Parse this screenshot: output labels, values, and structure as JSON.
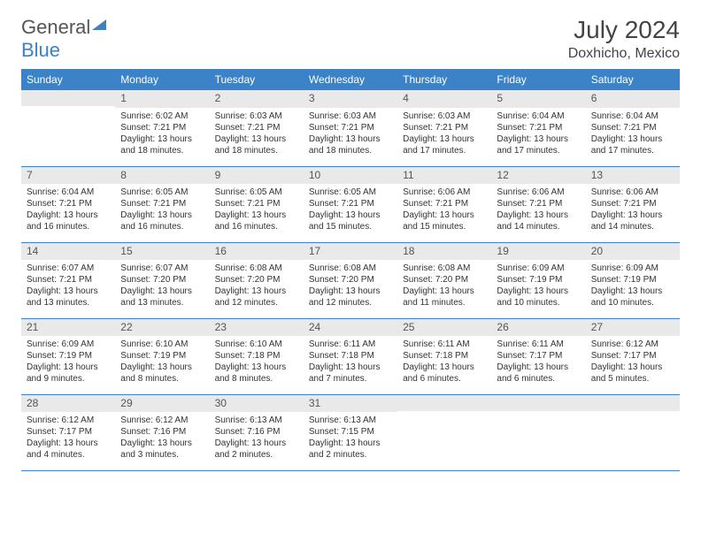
{
  "logo": {
    "general": "General",
    "blue": "Blue"
  },
  "title": "July 2024",
  "location": "Doxhicho, Mexico",
  "colors": {
    "header_bg": "#3b82c7",
    "header_text": "#ffffff",
    "daynum_bg": "#e9e9e9",
    "daynum_text": "#555555",
    "border": "#3b82c7",
    "body_text": "#333333",
    "page_bg": "#ffffff"
  },
  "weekdays": [
    "Sunday",
    "Monday",
    "Tuesday",
    "Wednesday",
    "Thursday",
    "Friday",
    "Saturday"
  ],
  "weeks": [
    [
      {
        "day": "",
        "sunrise": "",
        "sunset": "",
        "daylight": ""
      },
      {
        "day": "1",
        "sunrise": "Sunrise: 6:02 AM",
        "sunset": "Sunset: 7:21 PM",
        "daylight": "Daylight: 13 hours and 18 minutes."
      },
      {
        "day": "2",
        "sunrise": "Sunrise: 6:03 AM",
        "sunset": "Sunset: 7:21 PM",
        "daylight": "Daylight: 13 hours and 18 minutes."
      },
      {
        "day": "3",
        "sunrise": "Sunrise: 6:03 AM",
        "sunset": "Sunset: 7:21 PM",
        "daylight": "Daylight: 13 hours and 18 minutes."
      },
      {
        "day": "4",
        "sunrise": "Sunrise: 6:03 AM",
        "sunset": "Sunset: 7:21 PM",
        "daylight": "Daylight: 13 hours and 17 minutes."
      },
      {
        "day": "5",
        "sunrise": "Sunrise: 6:04 AM",
        "sunset": "Sunset: 7:21 PM",
        "daylight": "Daylight: 13 hours and 17 minutes."
      },
      {
        "day": "6",
        "sunrise": "Sunrise: 6:04 AM",
        "sunset": "Sunset: 7:21 PM",
        "daylight": "Daylight: 13 hours and 17 minutes."
      }
    ],
    [
      {
        "day": "7",
        "sunrise": "Sunrise: 6:04 AM",
        "sunset": "Sunset: 7:21 PM",
        "daylight": "Daylight: 13 hours and 16 minutes."
      },
      {
        "day": "8",
        "sunrise": "Sunrise: 6:05 AM",
        "sunset": "Sunset: 7:21 PM",
        "daylight": "Daylight: 13 hours and 16 minutes."
      },
      {
        "day": "9",
        "sunrise": "Sunrise: 6:05 AM",
        "sunset": "Sunset: 7:21 PM",
        "daylight": "Daylight: 13 hours and 16 minutes."
      },
      {
        "day": "10",
        "sunrise": "Sunrise: 6:05 AM",
        "sunset": "Sunset: 7:21 PM",
        "daylight": "Daylight: 13 hours and 15 minutes."
      },
      {
        "day": "11",
        "sunrise": "Sunrise: 6:06 AM",
        "sunset": "Sunset: 7:21 PM",
        "daylight": "Daylight: 13 hours and 15 minutes."
      },
      {
        "day": "12",
        "sunrise": "Sunrise: 6:06 AM",
        "sunset": "Sunset: 7:21 PM",
        "daylight": "Daylight: 13 hours and 14 minutes."
      },
      {
        "day": "13",
        "sunrise": "Sunrise: 6:06 AM",
        "sunset": "Sunset: 7:21 PM",
        "daylight": "Daylight: 13 hours and 14 minutes."
      }
    ],
    [
      {
        "day": "14",
        "sunrise": "Sunrise: 6:07 AM",
        "sunset": "Sunset: 7:21 PM",
        "daylight": "Daylight: 13 hours and 13 minutes."
      },
      {
        "day": "15",
        "sunrise": "Sunrise: 6:07 AM",
        "sunset": "Sunset: 7:20 PM",
        "daylight": "Daylight: 13 hours and 13 minutes."
      },
      {
        "day": "16",
        "sunrise": "Sunrise: 6:08 AM",
        "sunset": "Sunset: 7:20 PM",
        "daylight": "Daylight: 13 hours and 12 minutes."
      },
      {
        "day": "17",
        "sunrise": "Sunrise: 6:08 AM",
        "sunset": "Sunset: 7:20 PM",
        "daylight": "Daylight: 13 hours and 12 minutes."
      },
      {
        "day": "18",
        "sunrise": "Sunrise: 6:08 AM",
        "sunset": "Sunset: 7:20 PM",
        "daylight": "Daylight: 13 hours and 11 minutes."
      },
      {
        "day": "19",
        "sunrise": "Sunrise: 6:09 AM",
        "sunset": "Sunset: 7:19 PM",
        "daylight": "Daylight: 13 hours and 10 minutes."
      },
      {
        "day": "20",
        "sunrise": "Sunrise: 6:09 AM",
        "sunset": "Sunset: 7:19 PM",
        "daylight": "Daylight: 13 hours and 10 minutes."
      }
    ],
    [
      {
        "day": "21",
        "sunrise": "Sunrise: 6:09 AM",
        "sunset": "Sunset: 7:19 PM",
        "daylight": "Daylight: 13 hours and 9 minutes."
      },
      {
        "day": "22",
        "sunrise": "Sunrise: 6:10 AM",
        "sunset": "Sunset: 7:19 PM",
        "daylight": "Daylight: 13 hours and 8 minutes."
      },
      {
        "day": "23",
        "sunrise": "Sunrise: 6:10 AM",
        "sunset": "Sunset: 7:18 PM",
        "daylight": "Daylight: 13 hours and 8 minutes."
      },
      {
        "day": "24",
        "sunrise": "Sunrise: 6:11 AM",
        "sunset": "Sunset: 7:18 PM",
        "daylight": "Daylight: 13 hours and 7 minutes."
      },
      {
        "day": "25",
        "sunrise": "Sunrise: 6:11 AM",
        "sunset": "Sunset: 7:18 PM",
        "daylight": "Daylight: 13 hours and 6 minutes."
      },
      {
        "day": "26",
        "sunrise": "Sunrise: 6:11 AM",
        "sunset": "Sunset: 7:17 PM",
        "daylight": "Daylight: 13 hours and 6 minutes."
      },
      {
        "day": "27",
        "sunrise": "Sunrise: 6:12 AM",
        "sunset": "Sunset: 7:17 PM",
        "daylight": "Daylight: 13 hours and 5 minutes."
      }
    ],
    [
      {
        "day": "28",
        "sunrise": "Sunrise: 6:12 AM",
        "sunset": "Sunset: 7:17 PM",
        "daylight": "Daylight: 13 hours and 4 minutes."
      },
      {
        "day": "29",
        "sunrise": "Sunrise: 6:12 AM",
        "sunset": "Sunset: 7:16 PM",
        "daylight": "Daylight: 13 hours and 3 minutes."
      },
      {
        "day": "30",
        "sunrise": "Sunrise: 6:13 AM",
        "sunset": "Sunset: 7:16 PM",
        "daylight": "Daylight: 13 hours and 2 minutes."
      },
      {
        "day": "31",
        "sunrise": "Sunrise: 6:13 AM",
        "sunset": "Sunset: 7:15 PM",
        "daylight": "Daylight: 13 hours and 2 minutes."
      },
      {
        "day": "",
        "sunrise": "",
        "sunset": "",
        "daylight": ""
      },
      {
        "day": "",
        "sunrise": "",
        "sunset": "",
        "daylight": ""
      },
      {
        "day": "",
        "sunrise": "",
        "sunset": "",
        "daylight": ""
      }
    ]
  ]
}
